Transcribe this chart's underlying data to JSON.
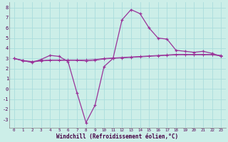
{
  "xlabel": "Windchill (Refroidissement éolien,°C)",
  "background_color": "#cceee8",
  "grid_color": "#aadddd",
  "line_color": "#993399",
  "x": [
    0,
    1,
    2,
    3,
    4,
    5,
    6,
    7,
    8,
    9,
    10,
    11,
    12,
    13,
    14,
    15,
    16,
    17,
    18,
    19,
    20,
    21,
    22,
    23
  ],
  "y_main": [
    3.0,
    2.8,
    2.6,
    2.9,
    3.3,
    3.2,
    2.7,
    -0.4,
    -3.3,
    -1.6,
    2.2,
    3.0,
    6.8,
    7.8,
    7.4,
    6.0,
    5.0,
    4.9,
    3.8,
    3.7,
    3.6,
    3.7,
    3.5,
    3.2
  ],
  "y_flat1": [
    3.0,
    2.8,
    2.7,
    2.8,
    2.85,
    2.85,
    2.85,
    2.85,
    2.85,
    2.9,
    3.0,
    3.05,
    3.1,
    3.15,
    3.2,
    3.25,
    3.3,
    3.35,
    3.4,
    3.4,
    3.4,
    3.4,
    3.4,
    3.3
  ],
  "y_flat2": [
    3.0,
    2.75,
    2.65,
    2.75,
    2.8,
    2.8,
    2.8,
    2.8,
    2.75,
    2.8,
    2.95,
    3.0,
    3.05,
    3.1,
    3.15,
    3.2,
    3.25,
    3.3,
    3.35,
    3.35,
    3.35,
    3.35,
    3.35,
    3.25
  ],
  "ylim": [
    -3.8,
    8.5
  ],
  "xlim": [
    -0.5,
    23.5
  ],
  "yticks": [
    -3,
    -2,
    -1,
    0,
    1,
    2,
    3,
    4,
    5,
    6,
    7,
    8
  ],
  "xticks": [
    0,
    1,
    2,
    3,
    4,
    5,
    6,
    7,
    8,
    9,
    10,
    11,
    12,
    13,
    14,
    15,
    16,
    17,
    18,
    19,
    20,
    21,
    22,
    23
  ],
  "ytick_labels": [
    "-3",
    "-2",
    "-1",
    "0",
    "1",
    "2",
    "3",
    "4",
    "5",
    "6",
    "7",
    "8"
  ],
  "xtick_labels": [
    "0",
    "1",
    "2",
    "3",
    "4",
    "5",
    "6",
    "7",
    "8",
    "9",
    "10",
    "11",
    "12",
    "13",
    "14",
    "15",
    "16",
    "17",
    "18",
    "19",
    "20",
    "21",
    "22",
    "23"
  ]
}
